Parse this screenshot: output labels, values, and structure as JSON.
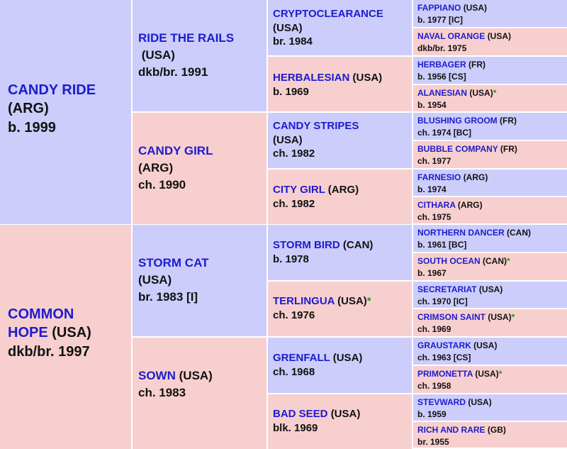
{
  "gen1": [
    {
      "name": "CANDY RIDE",
      "country": "(ARG)",
      "info": "b. 1999",
      "sex": "m"
    },
    {
      "name": "COMMON HOPE",
      "country": "(USA)",
      "info": "dkb/br. 1997",
      "sex": "f"
    }
  ],
  "gen2": [
    {
      "name": "RIDE THE RAILS",
      "country": "(USA)",
      "info": "dkb/br. 1991",
      "sex": "m"
    },
    {
      "name": "CANDY GIRL",
      "country": "(ARG)",
      "info": "ch. 1990",
      "sex": "f"
    },
    {
      "name": "STORM CAT",
      "country": "(USA)",
      "info": "br. 1983 [I]",
      "sex": "m"
    },
    {
      "name": "SOWN",
      "country": "(USA)",
      "info": "ch. 1983",
      "sex": "f"
    }
  ],
  "gen3": [
    {
      "name": "CRYPTOCLEARANCE",
      "country": "(USA)",
      "info": "br. 1984",
      "star": "",
      "sex": "m"
    },
    {
      "name": "HERBALESIAN",
      "country": "(USA)",
      "info": "b. 1969",
      "star": "",
      "sex": "f"
    },
    {
      "name": "CANDY STRIPES",
      "country": "(USA)",
      "info": "ch. 1982",
      "star": "",
      "sex": "m"
    },
    {
      "name": "CITY GIRL",
      "country": "(ARG)",
      "info": "ch. 1982",
      "star": "",
      "sex": "f"
    },
    {
      "name": "STORM BIRD",
      "country": "(CAN)",
      "info": "b. 1978",
      "star": "",
      "sex": "m"
    },
    {
      "name": "TERLINGUA",
      "country": "(USA)",
      "info": "ch. 1976",
      "star": "*",
      "sex": "f"
    },
    {
      "name": "GRENFALL",
      "country": "(USA)",
      "info": "ch. 1968",
      "star": "",
      "sex": "m"
    },
    {
      "name": "BAD SEED",
      "country": "(USA)",
      "info": "blk. 1969",
      "star": "",
      "sex": "f"
    }
  ],
  "gen4": [
    {
      "name": "FAPPIANO",
      "country": "(USA)",
      "info": "b. 1977 [IC]",
      "star": "",
      "sex": "m"
    },
    {
      "name": "NAVAL ORANGE",
      "country": "(USA)",
      "info": "dkb/br. 1975",
      "star": "",
      "sex": "f"
    },
    {
      "name": "HERBAGER",
      "country": "(FR)",
      "info": "b. 1956 [CS]",
      "star": "",
      "sex": "m"
    },
    {
      "name": "ALANESIAN",
      "country": "(USA)",
      "info": "b. 1954",
      "star": "*",
      "sex": "f"
    },
    {
      "name": "BLUSHING GROOM",
      "country": "(FR)",
      "info": "ch. 1974 [BC]",
      "star": "",
      "sex": "m"
    },
    {
      "name": "BUBBLE COMPANY",
      "country": "(FR)",
      "info": "ch. 1977",
      "star": "",
      "sex": "f"
    },
    {
      "name": "FARNESIO",
      "country": "(ARG)",
      "info": "b. 1974",
      "star": "",
      "sex": "m"
    },
    {
      "name": "CITHARA",
      "country": "(ARG)",
      "info": "ch. 1975",
      "star": "",
      "sex": "f"
    },
    {
      "name": "NORTHERN DANCER",
      "country": "(CAN)",
      "info": "b. 1961 [BC]",
      "star": "",
      "sex": "m"
    },
    {
      "name": "SOUTH OCEAN",
      "country": "(CAN)",
      "info": "b. 1967",
      "star": "*",
      "sex": "f"
    },
    {
      "name": "SECRETARIAT",
      "country": "(USA)",
      "info": "ch. 1970 [IC]",
      "star": "",
      "sex": "m"
    },
    {
      "name": "CRIMSON SAINT",
      "country": "(USA)",
      "info": "ch. 1969",
      "star": "*",
      "sex": "f"
    },
    {
      "name": "GRAUSTARK",
      "country": "(USA)",
      "info": "ch. 1963 [CS]",
      "star": "",
      "sex": "m"
    },
    {
      "name": "PRIMONETTA",
      "country": "(USA)",
      "info": "ch. 1958",
      "star": "*",
      "sex": "f"
    },
    {
      "name": "STEVWARD",
      "country": "(USA)",
      "info": "b. 1959",
      "star": "",
      "sex": "m"
    },
    {
      "name": "RICH AND RARE",
      "country": "(GB)",
      "info": "br. 1955",
      "star": "",
      "sex": "f"
    }
  ],
  "colors": {
    "male_bg": "#cccdfb",
    "female_bg": "#f7cfce",
    "name_text": "#1c1ccf",
    "star": "#1a9a1a"
  }
}
